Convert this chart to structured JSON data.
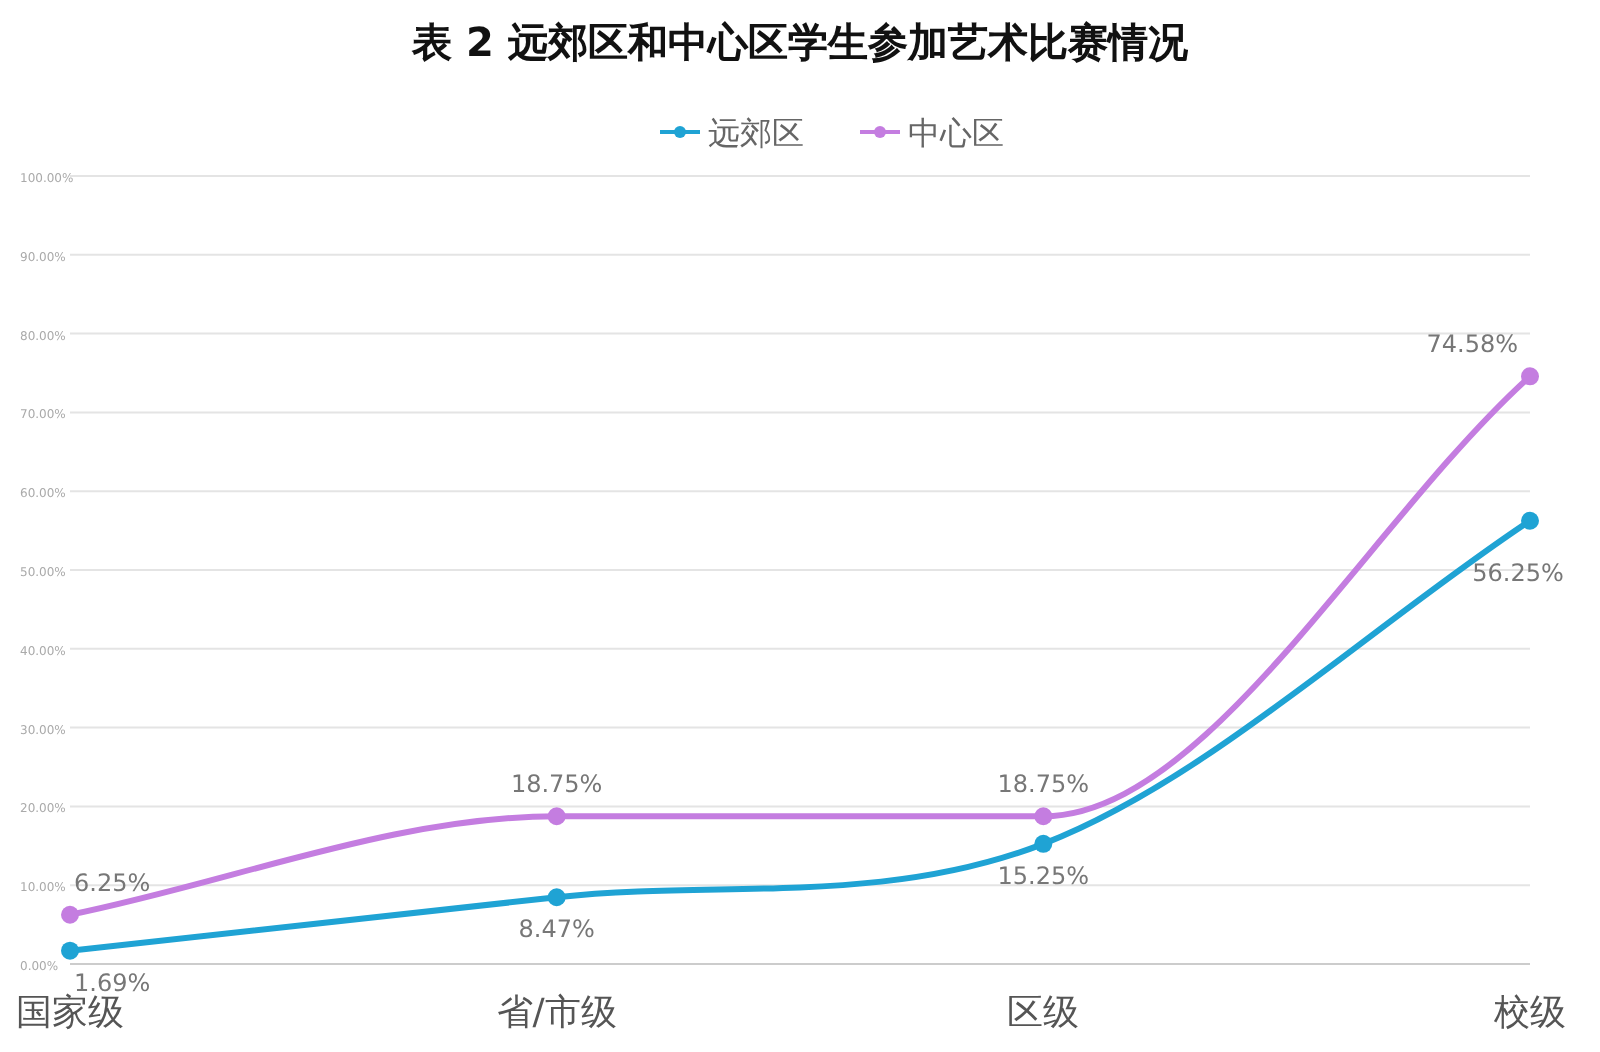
{
  "chart_data": {
    "type": "line",
    "title": "表 2  远郊区和中心区学生参加艺术比赛情况",
    "categories": [
      "国家级",
      "省/市级",
      "区级",
      "校级"
    ],
    "series": [
      {
        "name": "远郊区",
        "color": "#1fa3d4",
        "values": [
          1.69,
          8.47,
          15.25,
          56.25
        ],
        "value_labels": [
          "1.69%",
          "8.47%",
          "15.25%",
          "56.25%"
        ]
      },
      {
        "name": "中心区",
        "color": "#c47de0",
        "values": [
          6.25,
          18.75,
          18.75,
          74.58
        ],
        "value_labels": [
          "6.25%",
          "18.75%",
          "18.75%",
          "74.58%"
        ]
      }
    ],
    "ylim": [
      0,
      100
    ],
    "yticks": [
      {
        "value": 0,
        "label": "0.00%"
      },
      {
        "value": 10,
        "label": "10.00%"
      },
      {
        "value": 20,
        "label": "20.00%"
      },
      {
        "value": 30,
        "label": "30.00%"
      },
      {
        "value": 40,
        "label": "40.00%"
      },
      {
        "value": 50,
        "label": "50.00%"
      },
      {
        "value": 60,
        "label": "60.00%"
      },
      {
        "value": 70,
        "label": "70.00%"
      },
      {
        "value": 80,
        "label": "80.00%"
      },
      {
        "value": 90,
        "label": "90.00%"
      },
      {
        "value": 100,
        "label": "100.00%"
      }
    ],
    "grid": "y",
    "legend": "top",
    "marker": "circle",
    "line_style": "solid"
  }
}
